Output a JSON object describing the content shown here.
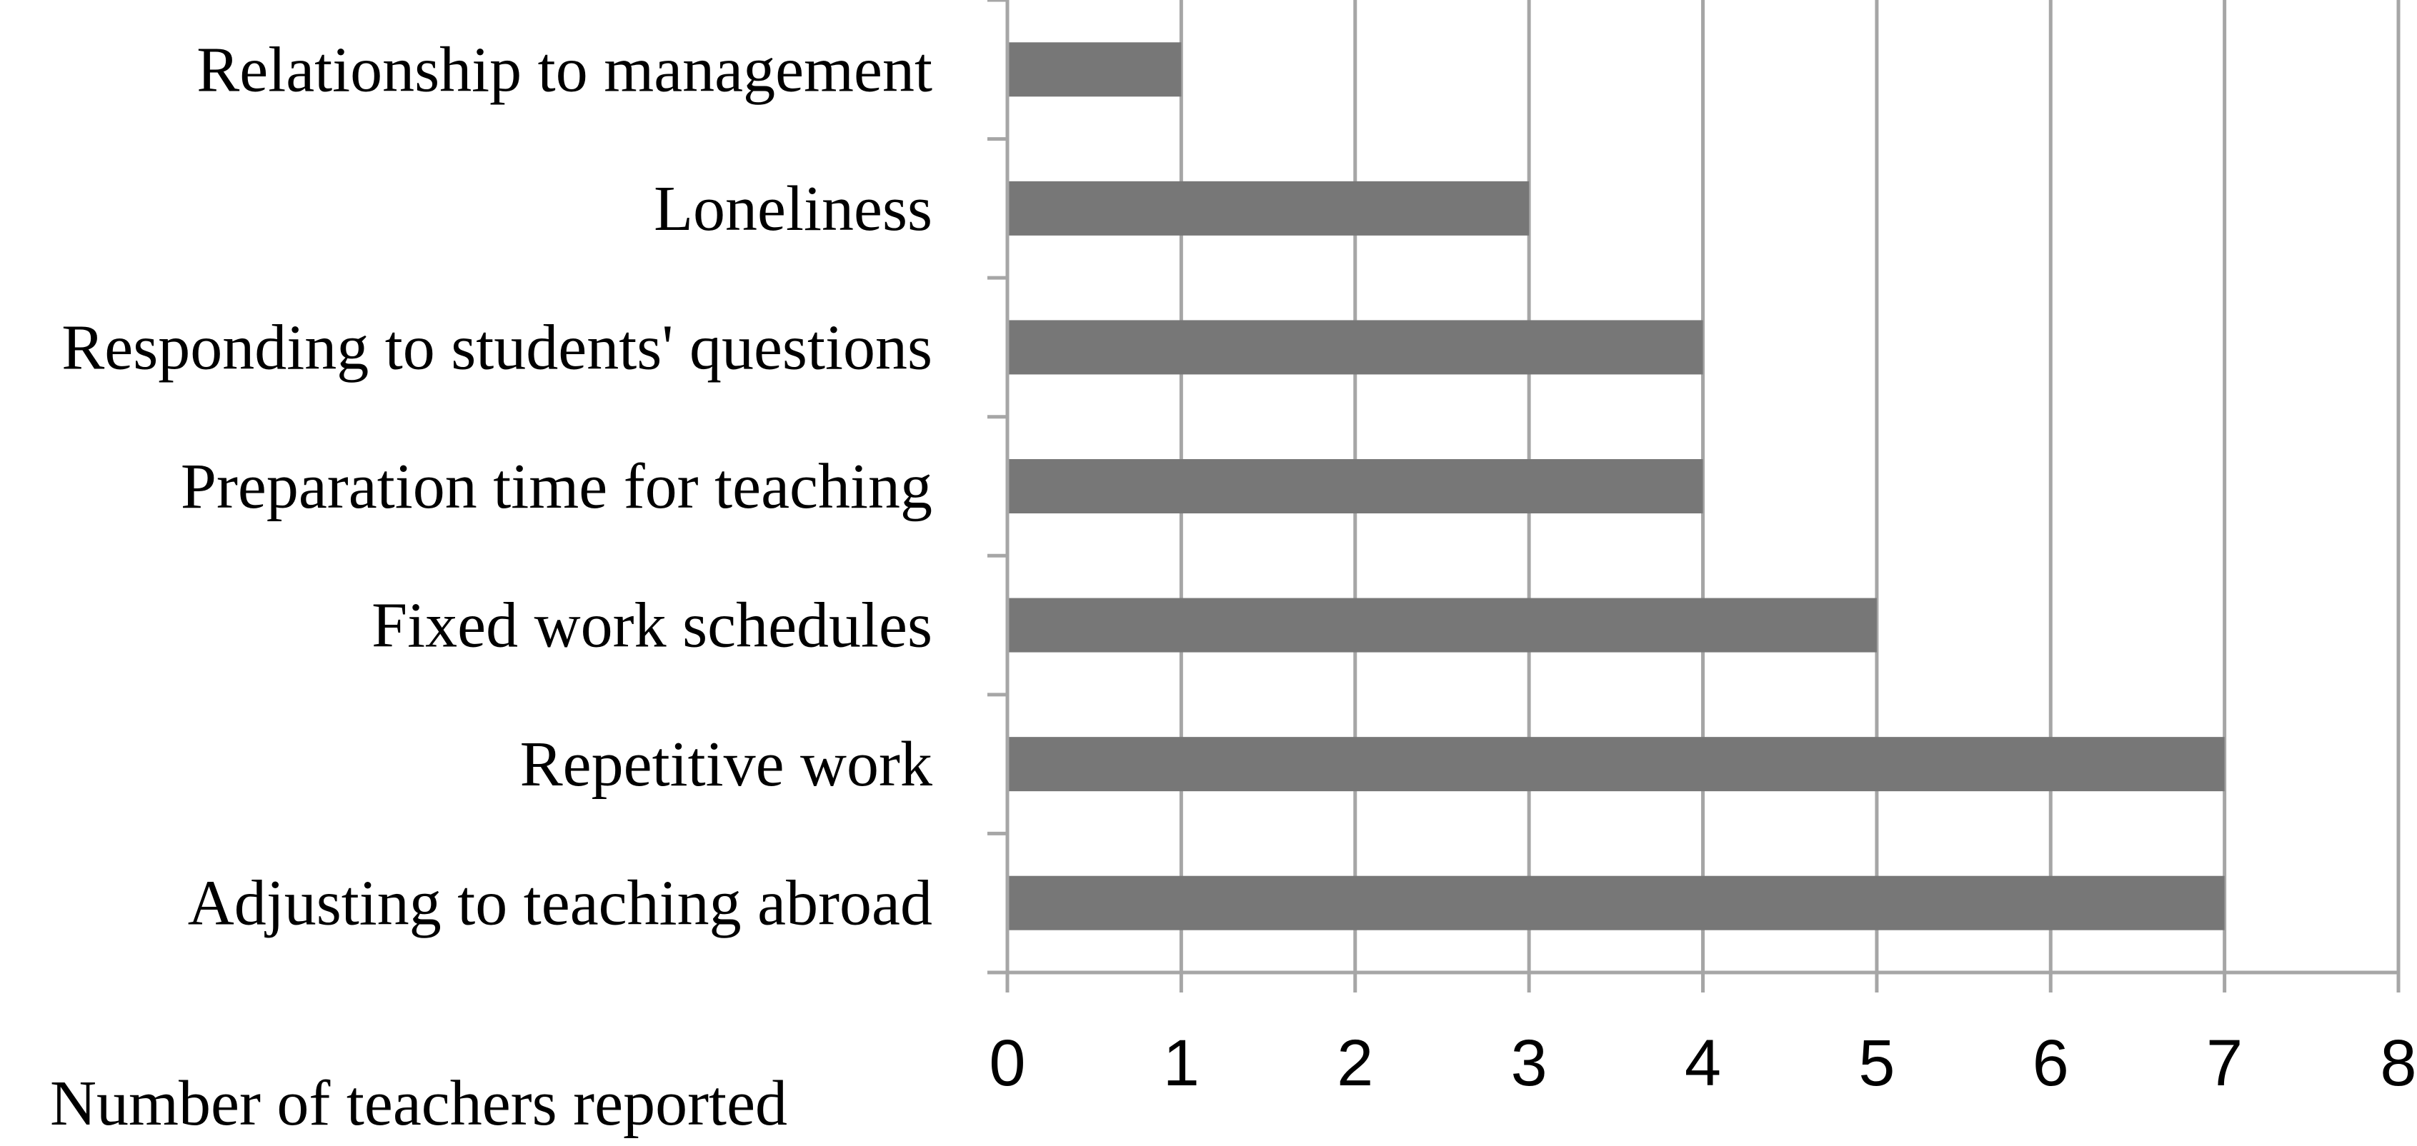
{
  "chart_data": {
    "type": "bar",
    "orientation": "horizontal",
    "categories": [
      "Relationship to management",
      "Loneliness",
      "Responding to students' questions",
      "Preparation time for teaching",
      "Fixed work schedules",
      "Repetitive work",
      "Adjusting to teaching abroad"
    ],
    "values": [
      1,
      3,
      4,
      4,
      5,
      7,
      7
    ],
    "xlabel": "Number of teachers reported",
    "xlim": [
      0,
      8
    ],
    "xticks": [
      "0",
      "1",
      "2",
      "3",
      "4",
      "5",
      "6",
      "7",
      "8"
    ],
    "grid": "vertical",
    "legend": "none",
    "bar_color": "#777777",
    "grid_color": "#a6a6a6"
  }
}
